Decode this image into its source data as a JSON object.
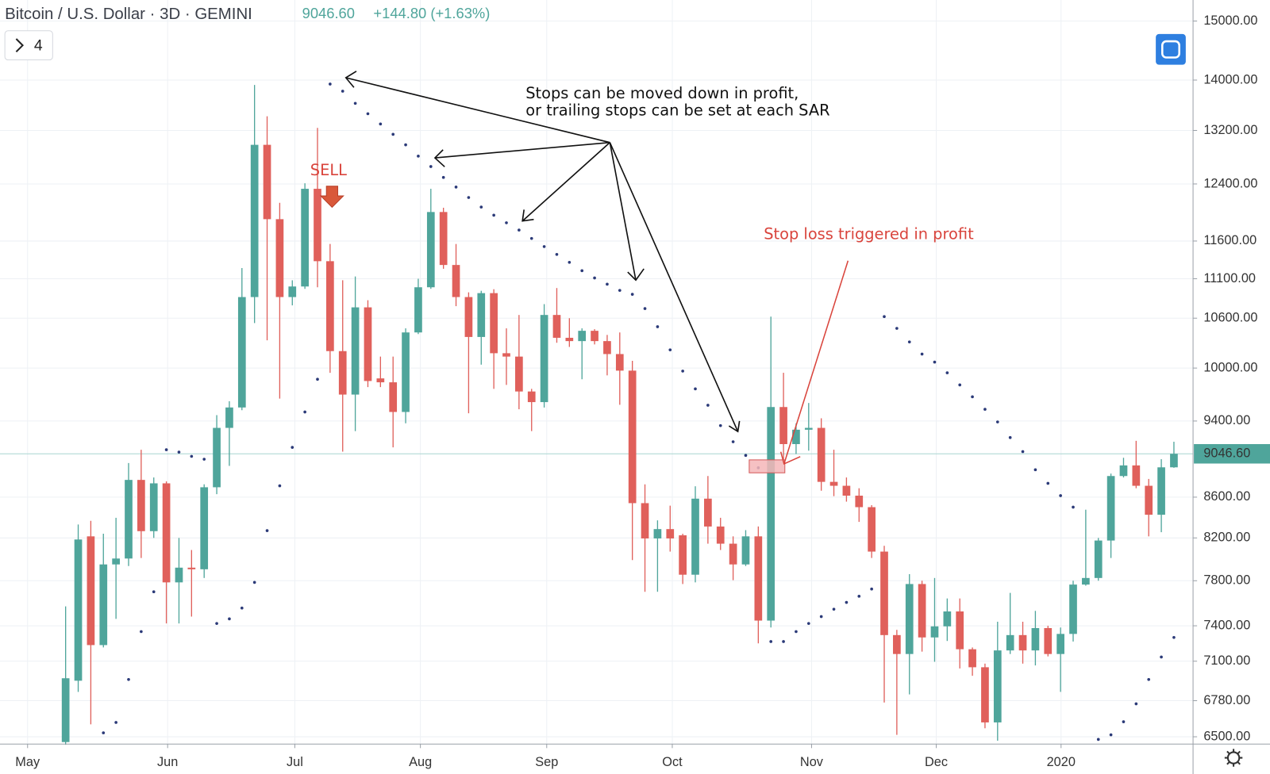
{
  "header": {
    "title": "Bitcoin / U.S. Dollar · 3D · GEMINI",
    "change": "+144.80 (+1.63%)",
    "collapsed_count": "4"
  },
  "chart_data": {
    "type": "candlestick",
    "log_scale": true,
    "grid": true,
    "up_color": "#4fa59b",
    "down_color": "#e0605b",
    "xlim": [
      -5.21,
      89.52
    ],
    "xticks": [
      {
        "value": -3.02,
        "label": "May"
      },
      {
        "value": 8.1,
        "label": "Jun"
      },
      {
        "value": 18.2,
        "label": "Jul"
      },
      {
        "value": 28.17,
        "label": "Aug"
      },
      {
        "value": 38.2,
        "label": "Sep"
      },
      {
        "value": 48.17,
        "label": "Oct"
      },
      {
        "value": 59.23,
        "label": "Nov"
      },
      {
        "value": 69.13,
        "label": "Dec"
      },
      {
        "value": 79.04,
        "label": "2020"
      }
    ],
    "ylim": [
      6445,
      15373
    ],
    "yticks": [
      {
        "value": 6500,
        "label": "6500.00"
      },
      {
        "value": 6780,
        "label": "6780.00"
      },
      {
        "value": 7100,
        "label": "7100.00"
      },
      {
        "value": 7400,
        "label": "7400.00"
      },
      {
        "value": 7800,
        "label": "7800.00"
      },
      {
        "value": 8200,
        "label": "8200.00"
      },
      {
        "value": 8600,
        "label": "8600.00"
      },
      {
        "value": 9400,
        "label": "9400.00"
      },
      {
        "value": 10000,
        "label": "10000.00"
      },
      {
        "value": 10600,
        "label": "10600.00"
      },
      {
        "value": 11100,
        "label": "11100.00"
      },
      {
        "value": 11600,
        "label": "11600.00"
      },
      {
        "value": 12400,
        "label": "12400.00"
      },
      {
        "value": 13200,
        "label": "13200.00"
      },
      {
        "value": 14000,
        "label": "14000.00"
      },
      {
        "value": 15000,
        "label": "15000.00"
      }
    ],
    "last_price": {
      "value": 9046.6,
      "label": "9046.60"
    },
    "open": [
      6460,
      6940,
      8215,
      7235,
      7950,
      8005,
      8775,
      8265,
      8740,
      7785,
      7920,
      7905,
      8700,
      9325,
      9550,
      10865,
      12980,
      11900,
      10865,
      11000,
      12330,
      11330,
      10200,
      9695,
      10735,
      9880,
      9835,
      9500,
      10425,
      10990,
      12000,
      11280,
      10865,
      10370,
      10915,
      10175,
      10135,
      9730,
      9610,
      10640,
      10360,
      10320,
      10445,
      10320,
      10165,
      9970,
      8540,
      8195,
      8285,
      8225,
      7855,
      8585,
      8310,
      8145,
      7950,
      8215,
      7445,
      9555,
      9150,
      9305,
      9325,
      8755,
      8715,
      8615,
      8500,
      8070,
      7320,
      7160,
      7770,
      7300,
      7395,
      7525,
      7200,
      7050,
      6610,
      7190,
      7320,
      7190,
      7380,
      7160,
      7330,
      7765,
      7825,
      8175,
      8815,
      8925,
      8715,
      8425,
      8905
    ],
    "high": [
      7570,
      8330,
      8365,
      8240,
      8395,
      8950,
      9090,
      8800,
      8760,
      8200,
      8085,
      8730,
      9465,
      9620,
      11240,
      13920,
      13420,
      12130,
      11080,
      12410,
      13240,
      11560,
      11080,
      11130,
      10825,
      10135,
      10135,
      10475,
      11100,
      12330,
      12060,
      11560,
      10925,
      10945,
      10965,
      10475,
      10640,
      9760,
      10775,
      10980,
      10600,
      10475,
      10465,
      10395,
      10425,
      10085,
      8730,
      8370,
      8515,
      8240,
      8710,
      8815,
      8395,
      8215,
      8275,
      8310,
      10620,
      9945,
      9375,
      9600,
      9430,
      9090,
      8800,
      8690,
      8520,
      8125,
      7365,
      7860,
      7800,
      7825,
      7640,
      7640,
      7215,
      7080,
      7435,
      7690,
      7435,
      7530,
      7400,
      7385,
      7800,
      8475,
      8200,
      8840,
      9005,
      9185,
      8785,
      8990,
      9175
    ],
    "low": [
      6440,
      6850,
      6595,
      7215,
      7460,
      7935,
      8010,
      8200,
      7420,
      7420,
      7480,
      7825,
      8630,
      8920,
      9520,
      10540,
      10330,
      9650,
      10760,
      10970,
      10990,
      9945,
      9070,
      9290,
      9780,
      9780,
      9115,
      9375,
      10405,
      10970,
      11230,
      10750,
      9485,
      10040,
      9760,
      9805,
      9530,
      9290,
      9550,
      10300,
      10250,
      9870,
      10280,
      9915,
      9580,
      7990,
      7700,
      7700,
      8070,
      7770,
      7785,
      8145,
      8085,
      7805,
      7935,
      7250,
      7385,
      8955,
      9045,
      9080,
      8665,
      8610,
      8555,
      8355,
      8010,
      6765,
      6515,
      6830,
      7180,
      7095,
      7270,
      7040,
      6980,
      6565,
      6470,
      7160,
      7080,
      7065,
      7140,
      6850,
      7265,
      7755,
      7800,
      8010,
      8800,
      8690,
      8215,
      8255,
      8900
    ],
    "close": [
      6960,
      8185,
      7235,
      7950,
      8005,
      8775,
      8265,
      8740,
      7785,
      7920,
      7905,
      8700,
      9325,
      9550,
      10865,
      12980,
      11900,
      10865,
      11000,
      12330,
      11330,
      10200,
      9695,
      10735,
      9850,
      9835,
      9500,
      10425,
      10990,
      12000,
      11280,
      10865,
      10370,
      10915,
      10175,
      10135,
      9730,
      9610,
      10640,
      10360,
      10320,
      10445,
      10320,
      10165,
      9970,
      8540,
      8195,
      8285,
      8195,
      7855,
      8585,
      8310,
      8145,
      7950,
      8215,
      7445,
      9555,
      9150,
      9305,
      9325,
      8755,
      8715,
      8615,
      8500,
      8070,
      7320,
      7160,
      7770,
      7300,
      7395,
      7525,
      7200,
      7050,
      6610,
      7190,
      7320,
      7190,
      7380,
      7160,
      7330,
      7765,
      7825,
      8175,
      8815,
      8925,
      8715,
      8425,
      8905,
      9046.6
    ],
    "sar": {
      "color": "#2b3a78",
      "values": [
        null,
        null,
        null,
        6530,
        6610,
        6950,
        7350,
        7700,
        9090,
        9065,
        9020,
        8990,
        7420,
        7460,
        7555,
        7785,
        8270,
        8715,
        9115,
        9500,
        9870,
        13935,
        13820,
        13625,
        13460,
        13300,
        13140,
        12980,
        12810,
        12655,
        12495,
        12355,
        12205,
        12070,
        11955,
        11850,
        11750,
        11635,
        11525,
        11420,
        11315,
        11205,
        11110,
        11030,
        10950,
        10900,
        10720,
        10495,
        10215,
        9965,
        9760,
        9575,
        9350,
        9175,
        9030,
        8900,
        7265,
        7265,
        7350,
        7420,
        7480,
        7545,
        7605,
        7660,
        7725,
        10620,
        10475,
        10310,
        10165,
        10070,
        9945,
        9805,
        9670,
        9530,
        9390,
        9220,
        9070,
        8880,
        8740,
        8615,
        8500,
        null,
        6480,
        6515,
        6615,
        6755,
        6950,
        7135,
        7300
      ]
    },
    "annotations": [
      "Stops can be moved down in profit,",
      "or trailing stops can be set at each SAR",
      "Stop loss triggered in profit",
      "SELL"
    ]
  }
}
